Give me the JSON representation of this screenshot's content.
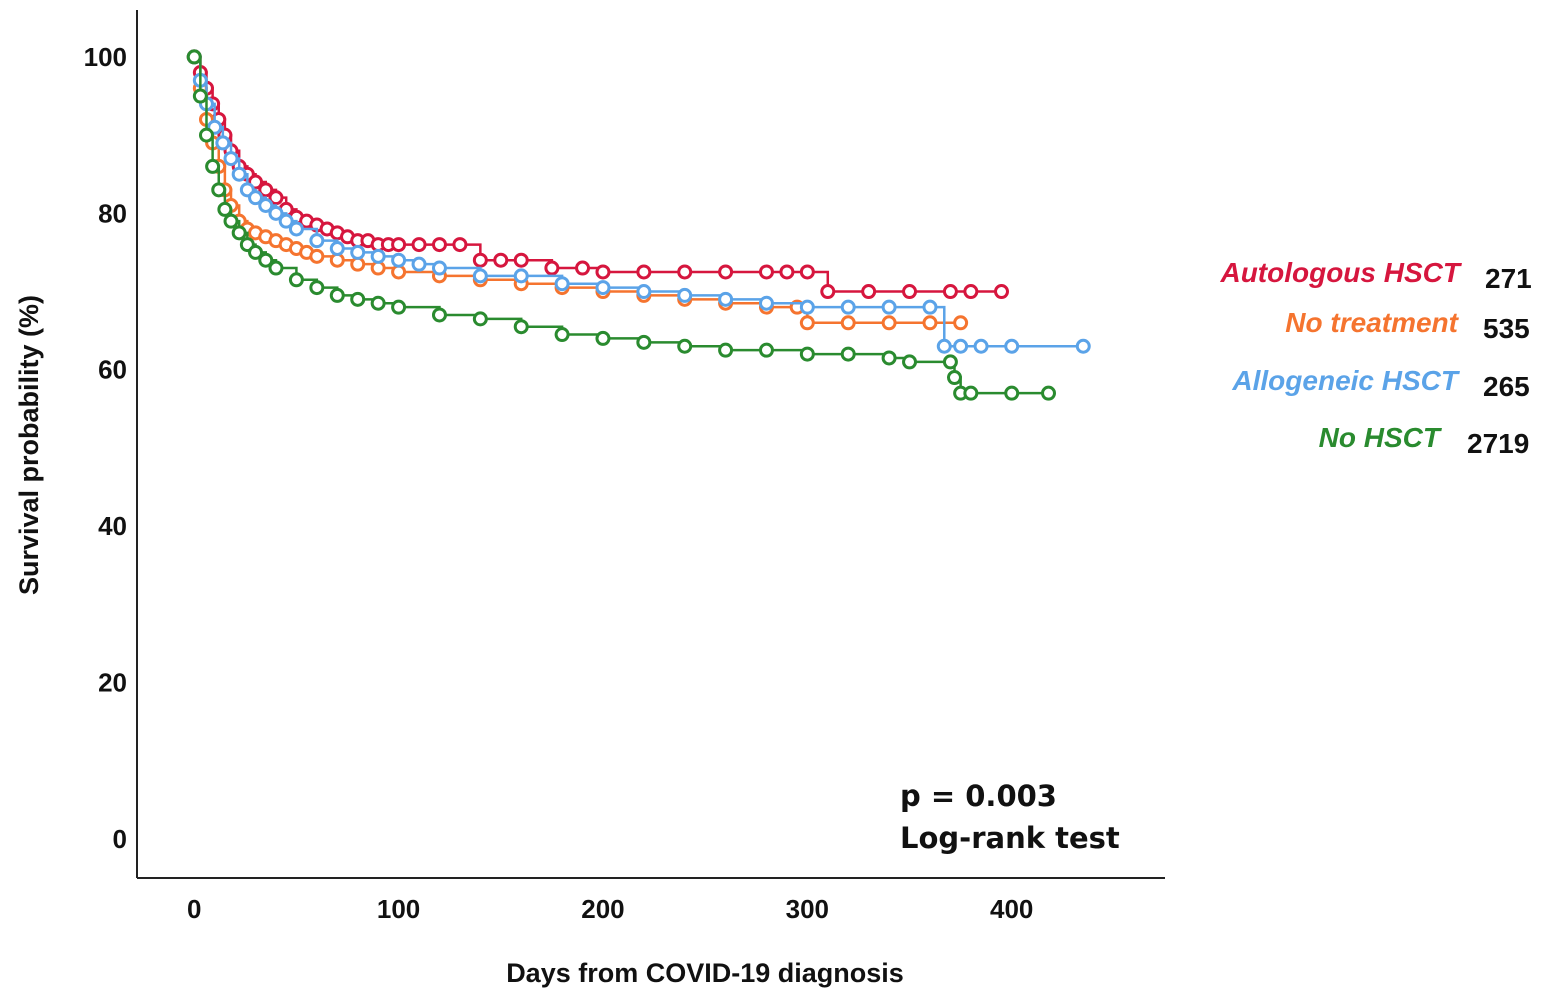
{
  "chart_data": {
    "type": "line",
    "subtype": "kaplan-meier",
    "title": "",
    "xlabel": "Days from COVID-19 diagnosis",
    "ylabel": "Survival probability (%)",
    "xlim": [
      -28,
      475
    ],
    "ylim": [
      -5,
      106
    ],
    "xticks": [
      "0",
      "100",
      "200",
      "300",
      "400"
    ],
    "yticks": [
      "0",
      "20",
      "40",
      "60",
      "80",
      "100"
    ],
    "grid": false,
    "legend_position": "right",
    "series": [
      {
        "name": "Autologous HSCT",
        "n": "271",
        "color": "#d6163e",
        "x": [
          0,
          3,
          6,
          9,
          12,
          15,
          18,
          22,
          26,
          30,
          35,
          40,
          45,
          50,
          55,
          60,
          65,
          70,
          75,
          80,
          85,
          90,
          95,
          100,
          110,
          120,
          130,
          140,
          150,
          160,
          175,
          190,
          200,
          220,
          240,
          260,
          280,
          290,
          300,
          310,
          330,
          350,
          370,
          380,
          395
        ],
        "y": [
          100,
          98,
          96,
          94,
          92,
          90,
          88,
          86,
          85,
          84,
          83,
          82,
          80.5,
          79.5,
          79,
          78.5,
          78,
          77.5,
          77,
          76.5,
          76.5,
          76,
          76,
          76,
          76,
          76,
          76,
          74,
          74,
          74,
          73,
          73,
          72.5,
          72.5,
          72.5,
          72.5,
          72.5,
          72.5,
          72.5,
          70,
          70,
          70,
          70,
          70,
          70
        ]
      },
      {
        "name": "No treatment",
        "n": "535",
        "color": "#f5742f",
        "x": [
          0,
          3,
          6,
          9,
          12,
          15,
          18,
          22,
          26,
          30,
          35,
          40,
          45,
          50,
          55,
          60,
          70,
          80,
          90,
          100,
          120,
          140,
          160,
          180,
          200,
          220,
          240,
          260,
          280,
          295,
          300,
          320,
          340,
          360,
          375
        ],
        "y": [
          100,
          96,
          92,
          89,
          86,
          83,
          81,
          79,
          78,
          77.5,
          77,
          76.5,
          76,
          75.5,
          75,
          74.5,
          74,
          73.5,
          73,
          72.5,
          72,
          71.5,
          71,
          70.5,
          70,
          69.5,
          69,
          68.5,
          68,
          68,
          66,
          66,
          66,
          66,
          66
        ]
      },
      {
        "name": "Allogeneic HSCT",
        "n": "265",
        "color": "#5ba3e8",
        "x": [
          0,
          3,
          6,
          10,
          14,
          18,
          22,
          26,
          30,
          35,
          40,
          45,
          50,
          60,
          70,
          80,
          90,
          100,
          110,
          120,
          140,
          160,
          180,
          200,
          220,
          240,
          260,
          280,
          300,
          320,
          340,
          360,
          367,
          375,
          385,
          400,
          435
        ],
        "y": [
          100,
          97,
          94,
          91,
          89,
          87,
          85,
          83,
          82,
          81,
          80,
          79,
          78,
          76.5,
          75.5,
          75,
          74.5,
          74,
          73.5,
          73,
          72,
          72,
          71,
          70.5,
          70,
          69.5,
          69,
          68.5,
          68,
          68,
          68,
          68,
          63,
          63,
          63,
          63,
          63
        ]
      },
      {
        "name": "No HSCT",
        "n": "2719",
        "color": "#2a8b2f",
        "x": [
          0,
          3,
          6,
          9,
          12,
          15,
          18,
          22,
          26,
          30,
          35,
          40,
          50,
          60,
          70,
          80,
          90,
          100,
          120,
          140,
          160,
          180,
          200,
          220,
          240,
          260,
          280,
          300,
          320,
          340,
          350,
          370,
          372,
          375,
          380,
          400,
          418
        ],
        "y": [
          100,
          95,
          90,
          86,
          83,
          80.5,
          79,
          77.5,
          76,
          75,
          74,
          73,
          71.5,
          70.5,
          69.5,
          69,
          68.5,
          68,
          67,
          66.5,
          65.5,
          64.5,
          64,
          63.5,
          63,
          62.5,
          62.5,
          62,
          62,
          61.5,
          61,
          61,
          59,
          57,
          57,
          57,
          57
        ]
      }
    ],
    "annotations": [
      "p = 0.003",
      "Log-rank test"
    ]
  }
}
